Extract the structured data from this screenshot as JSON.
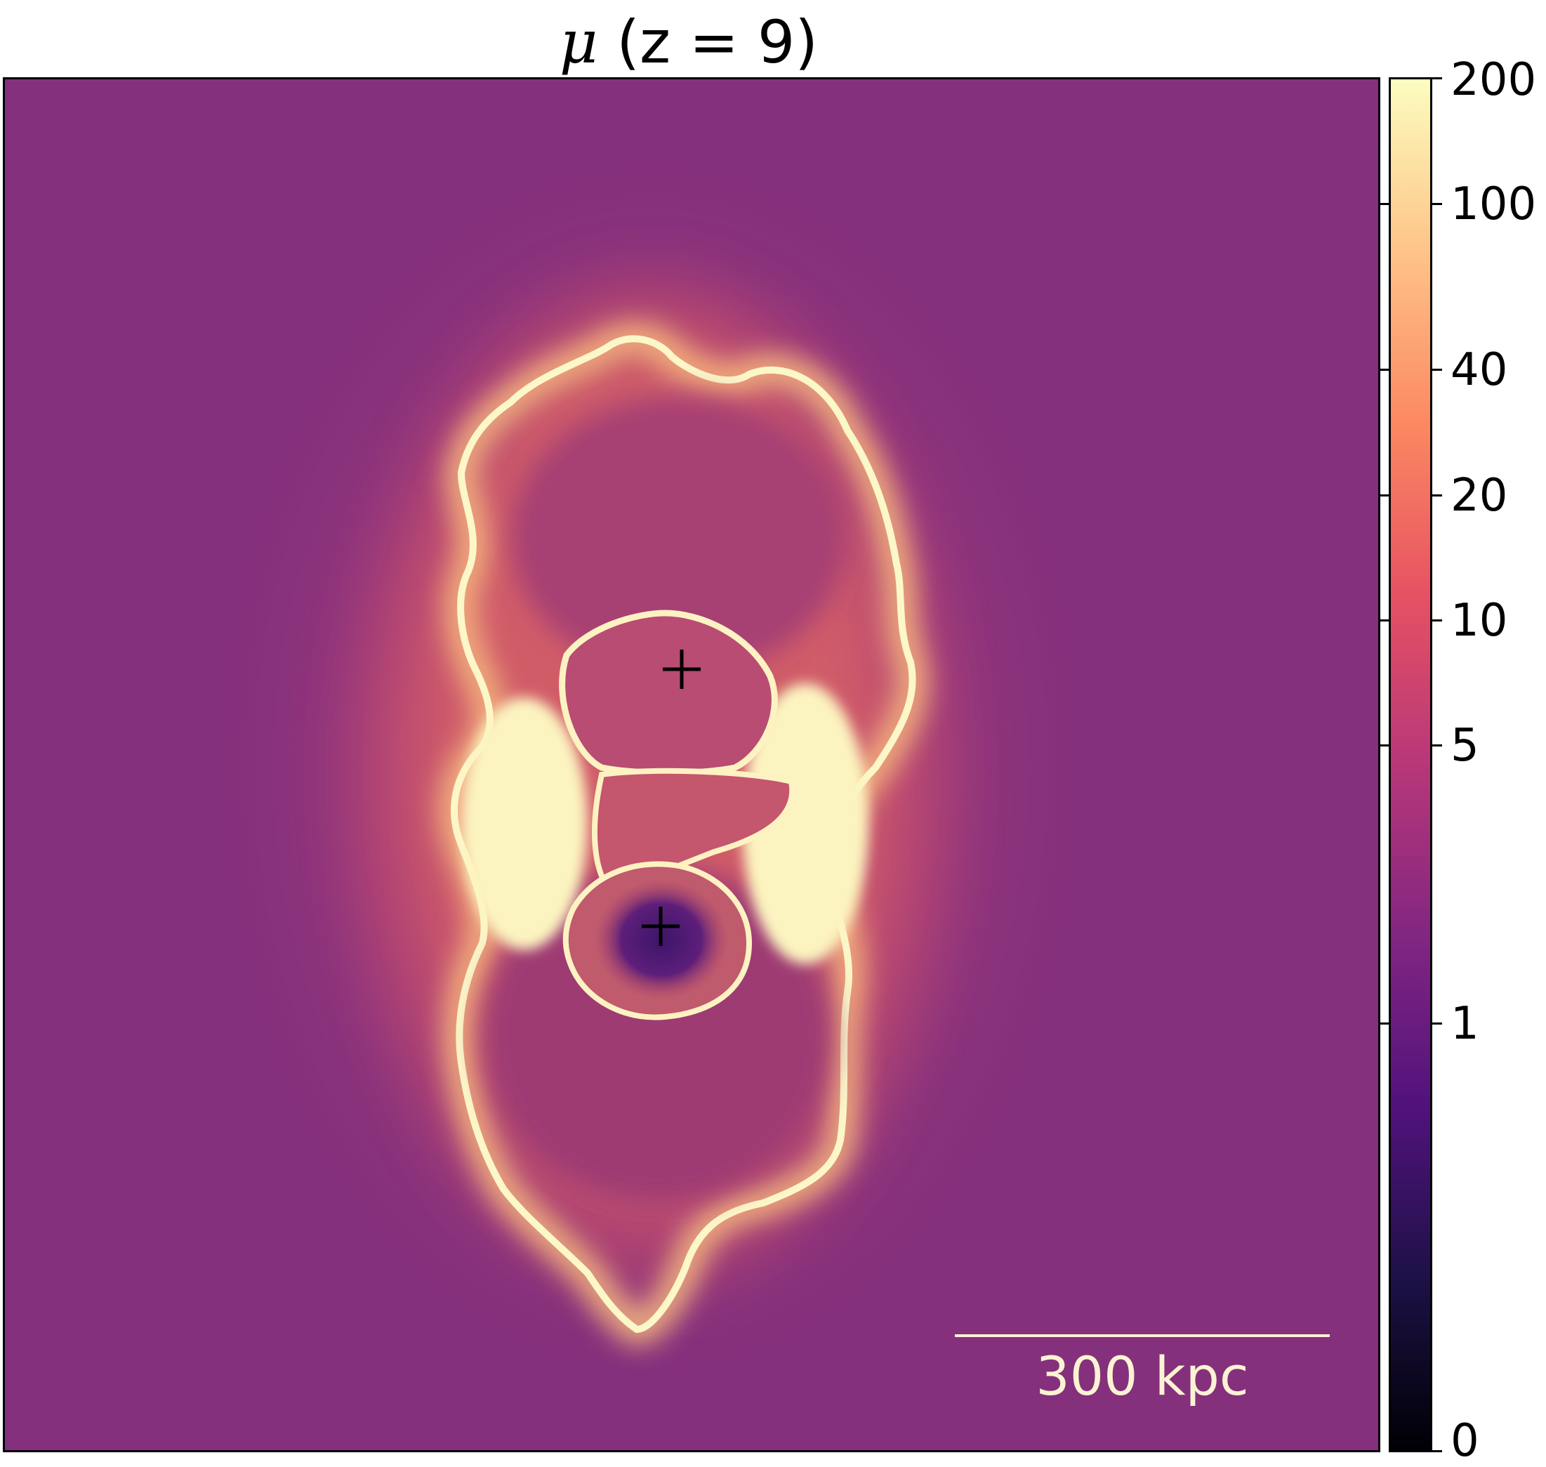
{
  "title": {
    "symbol": "μ",
    "condition": "(z = 9)"
  },
  "scalebar": {
    "label": "300 kpc"
  },
  "colorbar": {
    "ticks": [
      "200",
      "100",
      "40",
      "20",
      "10",
      "5",
      "1",
      "0"
    ],
    "colors": [
      "#000004",
      "#1d1147",
      "#51127c",
      "#822681",
      "#b73779",
      "#e75263",
      "#fc8961",
      "#fec488",
      "#fcfdbf"
    ]
  },
  "map": {
    "background": "#85307c",
    "markers": [
      "plus-marker",
      "plus-marker"
    ]
  }
}
